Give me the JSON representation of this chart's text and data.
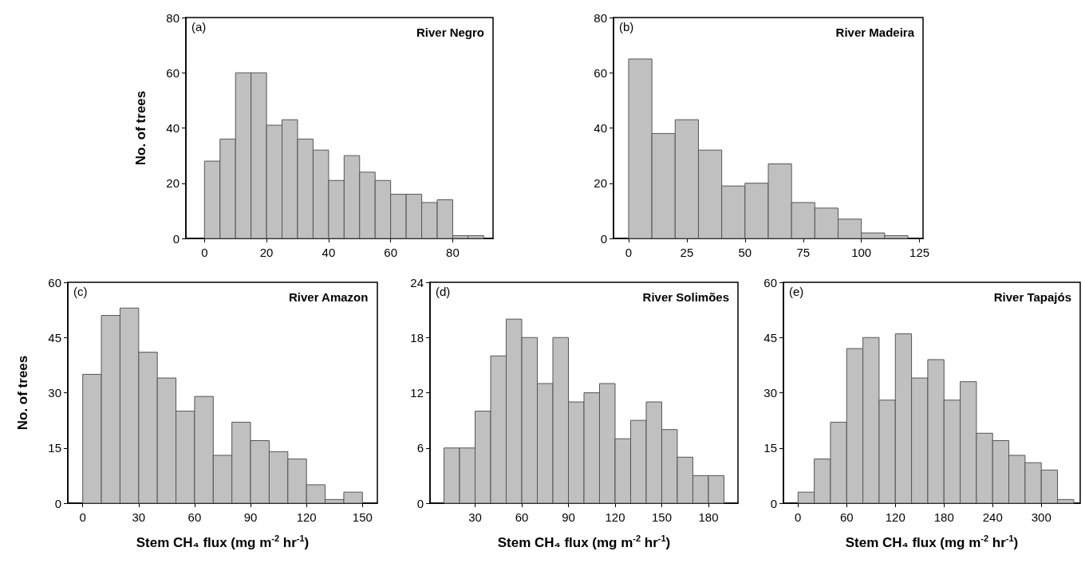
{
  "chart_data": [
    {
      "type": "histogram",
      "title": "River Negro",
      "annotations": [
        "(a)"
      ],
      "ylabel": "No. of trees",
      "color": "#c0c0c0",
      "bins": [
        0,
        5,
        10,
        15,
        20,
        25,
        30,
        35,
        40,
        45,
        50,
        55,
        60,
        65,
        70,
        75,
        80,
        85,
        90
      ],
      "values": [
        28,
        36,
        60,
        60,
        41,
        43,
        36,
        32,
        21,
        30,
        24,
        21,
        16,
        16,
        13,
        14,
        1,
        1
      ],
      "xlim": [
        -6,
        93
      ],
      "xticks": [
        0,
        20,
        40,
        60,
        80
      ],
      "ylim": [
        0,
        80
      ],
      "yticks": [
        0,
        20,
        40,
        60,
        80
      ]
    },
    {
      "type": "histogram",
      "title": "River Madeira",
      "annotations": [
        "(b)"
      ],
      "color": "#c0c0c0",
      "bins": [
        0,
        10,
        20,
        30,
        40,
        50,
        60,
        70,
        80,
        90,
        100,
        110,
        120
      ],
      "values": [
        65,
        38,
        43,
        32,
        19,
        20,
        27,
        13,
        11,
        7,
        2,
        1
      ],
      "xlim": [
        -6.5,
        126.5
      ],
      "xticks": [
        0,
        25,
        50,
        75,
        100,
        125
      ],
      "ylim": [
        0,
        80
      ],
      "yticks": [
        0,
        20,
        40,
        60,
        80
      ]
    },
    {
      "type": "histogram",
      "title": "River Amazon",
      "annotations": [
        "(c)"
      ],
      "ylabel": "No. of trees",
      "xlabel": "Stem CH₄ flux (mg m$^{-2}$ hr$^{-1}$)",
      "color": "#c0c0c0",
      "bins": [
        0,
        10,
        20,
        30,
        40,
        50,
        60,
        70,
        80,
        90,
        100,
        110,
        120,
        130,
        140,
        150
      ],
      "values": [
        35,
        51,
        53,
        41,
        34,
        25,
        29,
        13,
        22,
        17,
        14,
        12,
        5,
        1,
        3
      ],
      "xlim": [
        -8,
        158
      ],
      "xticks": [
        0,
        30,
        60,
        90,
        120,
        150
      ],
      "ylim": [
        0,
        60
      ],
      "yticks": [
        0,
        15,
        30,
        45,
        60
      ]
    },
    {
      "type": "histogram",
      "title": "River Solimões",
      "annotations": [
        "(d)"
      ],
      "xlabel": "Stem CH₄ flux (mg m$^{-2}$ hr$^{-1}$)",
      "color": "#c0c0c0",
      "bins": [
        10,
        20,
        30,
        40,
        50,
        60,
        70,
        80,
        90,
        100,
        110,
        120,
        130,
        140,
        150,
        160,
        170,
        180,
        190
      ],
      "values": [
        6,
        6,
        10,
        16,
        20,
        18,
        13,
        18,
        11,
        12,
        13,
        7,
        9,
        11,
        8,
        5,
        3,
        3
      ],
      "xlim": [
        1,
        199
      ],
      "xticks": [
        30,
        60,
        90,
        120,
        150,
        180
      ],
      "ylim": [
        0,
        24
      ],
      "yticks": [
        0,
        6,
        12,
        18,
        24
      ]
    },
    {
      "type": "histogram",
      "title": "River Tapajós",
      "annotations": [
        "(e)"
      ],
      "xlabel": "Stem CH₄ flux (mg m$^{-2}$ hr$^{-1}$)",
      "color": "#c0c0c0",
      "bins": [
        0,
        20,
        40,
        60,
        80,
        100,
        120,
        140,
        160,
        180,
        200,
        220,
        240,
        260,
        280,
        300,
        320,
        340
      ],
      "values": [
        3,
        12,
        22,
        42,
        45,
        28,
        46,
        34,
        39,
        28,
        33,
        19,
        17,
        13,
        11,
        9,
        1
      ],
      "xlim": [
        -18,
        348
      ],
      "xticks": [
        0,
        60,
        120,
        180,
        240,
        300
      ],
      "ylim": [
        0,
        60
      ],
      "yticks": [
        0,
        15,
        30,
        45,
        60
      ]
    }
  ]
}
